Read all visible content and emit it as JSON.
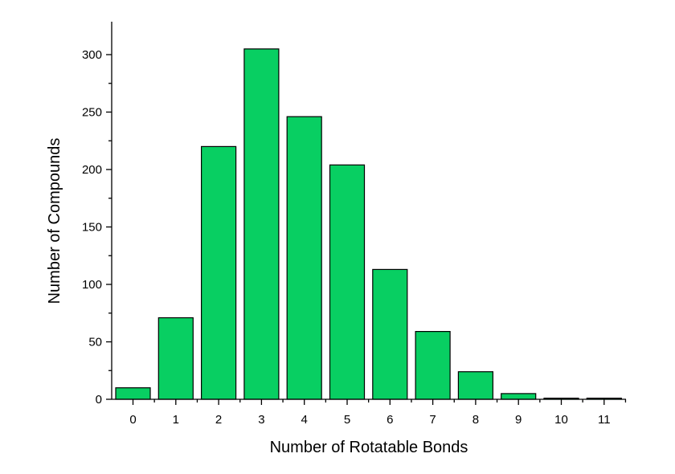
{
  "chart_data": {
    "type": "bar",
    "xlabel": "Number of Rotatable Bonds",
    "ylabel": "Number of Compounds",
    "categories": [
      "0",
      "1",
      "2",
      "3",
      "4",
      "5",
      "6",
      "7",
      "8",
      "9",
      "10",
      "11"
    ],
    "values": [
      10,
      71,
      220,
      305,
      246,
      204,
      113,
      59,
      24,
      5,
      1,
      1
    ],
    "ylim": [
      0,
      320
    ],
    "yticks": [
      0,
      50,
      100,
      150,
      200,
      250,
      300
    ],
    "grid": false,
    "legend": "none",
    "bar_color": "#08CF62"
  }
}
